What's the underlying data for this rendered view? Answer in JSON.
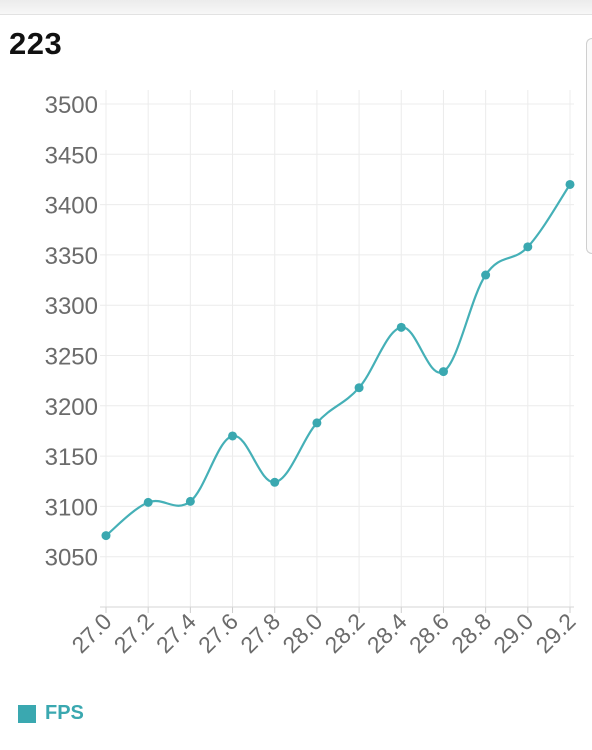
{
  "header": {
    "value": "223"
  },
  "chart_data": {
    "type": "line",
    "x": [
      "27.0",
      "27.2",
      "27.4",
      "27.6",
      "27.8",
      "28.0",
      "28.2",
      "28.4",
      "28.6",
      "28.8",
      "29.0",
      "29.2"
    ],
    "series": [
      {
        "name": "FPS",
        "values": [
          3071,
          3104,
          3105,
          3170,
          3124,
          3183,
          3218,
          3278,
          3234,
          3330,
          3358,
          3420
        ]
      }
    ],
    "y_ticks": [
      3050,
      3100,
      3150,
      3200,
      3250,
      3300,
      3350,
      3400,
      3450,
      3500
    ],
    "ylim": [
      3000,
      3500
    ],
    "curve": "smooth",
    "grid": true,
    "legend": "bottom-left",
    "colors": {
      "line": "#45b0b7",
      "point": "#3aa8b0",
      "legend": "#3aa8b0",
      "text": "#6b6b6b"
    }
  }
}
